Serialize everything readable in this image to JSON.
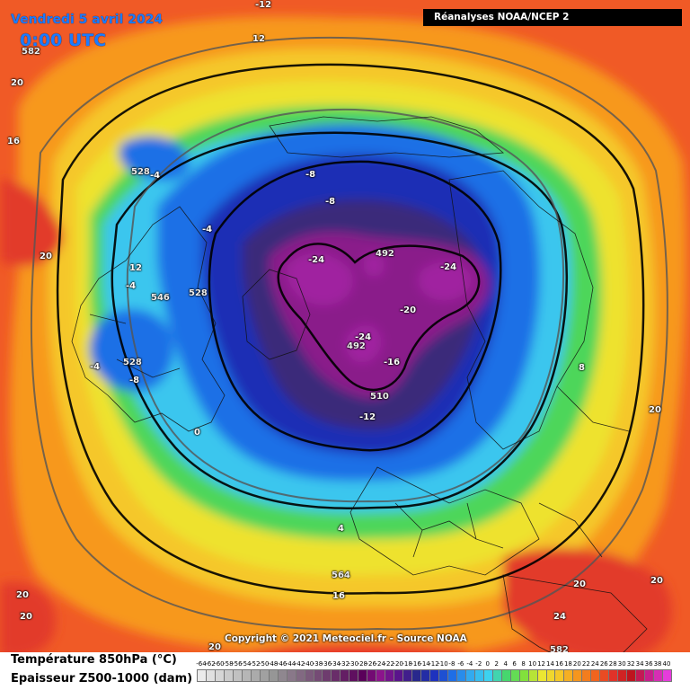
{
  "header": {
    "date": "Vendredi 5 avril 2024",
    "time": "0:00 UTC",
    "source": "Réanalyses NOAA/NCEP 2"
  },
  "copyright": "Copyright © 2021 Meteociel.fr - Source NOAA",
  "legend": {
    "line1": "Température 850hPa (°C)",
    "line2": "Epaisseur Z500-1000 (dam)",
    "scale_ticks": [
      "-64",
      "-62",
      "-60",
      "-58",
      "-56",
      "-54",
      "-52",
      "-50",
      "-48",
      "-46",
      "-44",
      "-42",
      "-40",
      "-38",
      "-36",
      "-34",
      "-32",
      "-30",
      "-28",
      "-26",
      "-24",
      "-22",
      "-20",
      "-18",
      "-16",
      "-14",
      "-12",
      "-10",
      "-8",
      "-6",
      "-4",
      "-2",
      "0",
      "2",
      "4",
      "6",
      "8",
      "10",
      "12",
      "14",
      "16",
      "18",
      "20",
      "22",
      "24",
      "26",
      "28",
      "30",
      "32",
      "34",
      "36",
      "38",
      "40"
    ]
  },
  "colors": {
    "cold_core": "#7a0a7a",
    "very_cold": "#1e1e9a",
    "cold": "#1f5fe0",
    "cool": "#37c8f0",
    "mild": "#4fdc52",
    "warmish": "#f6e62b",
    "warm": "#f79a17",
    "hot": "#e8372a"
  },
  "map_labels": {
    "temp_neg24_a": "-24",
    "temp_neg24_b": "-24",
    "temp_neg24_c": "-24",
    "temp_neg20": "-20",
    "temp_neg16": "-16",
    "temp_neg12": "-12",
    "temp_neg8_a": "-8",
    "temp_neg8_b": "-8",
    "temp_neg8_c": "-8",
    "temp_neg4_a": "-4",
    "temp_neg4_b": "-4",
    "temp_neg4_c": "-4",
    "temp_neg4_d": "-4",
    "temp_0": "0",
    "temp_4": "4",
    "temp_8": "8",
    "temp_12_a": "12",
    "temp_12_b": "12",
    "temp_neg12_top": "-12",
    "temp_16_a": "16",
    "temp_16_b": "16",
    "temp_20_a": "20",
    "temp_20_b": "20",
    "temp_20_c": "20",
    "temp_20_d": "20",
    "temp_20_e": "20",
    "temp_20_f": "20",
    "temp_20_g": "20",
    "temp_20_h": "20",
    "temp_24": "24",
    "thick_492_a": "492",
    "thick_492_b": "492",
    "thick_510": "510",
    "thick_528_a": "528",
    "thick_528_b": "528",
    "thick_528_c": "528",
    "thick_546": "546",
    "thick_564": "564",
    "thick_582_a": "582",
    "thick_582_b": "582"
  }
}
